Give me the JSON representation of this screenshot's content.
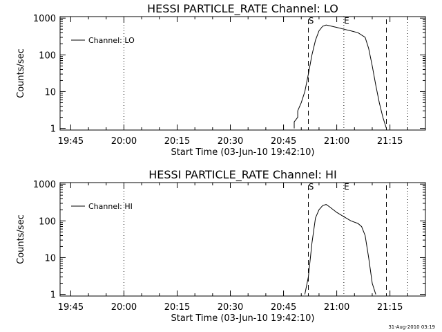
{
  "footer": {
    "timestamp": "31-Aug-2010 03:19"
  },
  "chart_data": [
    {
      "type": "line",
      "title": "HESSI PARTICLE_RATE Channel: LO",
      "xlabel": "Start Time (03-Jun-10 19:42:10)",
      "ylabel": "Counts/sec",
      "yscale": "log",
      "ylim": [
        0.9,
        1100
      ],
      "xlim": [
        "19:42",
        "21:25"
      ],
      "x_ticks": [
        "19:45",
        "20:00",
        "20:15",
        "20:30",
        "20:45",
        "21:00",
        "21:15"
      ],
      "y_ticks": [
        "1",
        "10",
        "100",
        "1000"
      ],
      "legend": {
        "position": "top-left",
        "entries": [
          "Channel: LO"
        ]
      },
      "markers": [
        {
          "label": "S",
          "time": "20:52",
          "style": "dashed"
        },
        {
          "label": "E",
          "time": "21:02",
          "style": "dotted"
        }
      ],
      "vlines": [
        {
          "time": "20:00",
          "style": "dotted"
        },
        {
          "time": "20:52",
          "style": "dashed"
        },
        {
          "time": "21:02",
          "style": "dotted"
        },
        {
          "time": "21:14",
          "style": "dashed"
        },
        {
          "time": "21:20",
          "style": "dotted"
        }
      ],
      "series": [
        {
          "name": "Channel: LO",
          "x": [
            "20:48",
            "20:48",
            "20:49",
            "20:49",
            "20:50",
            "20:51",
            "20:52",
            "20:53",
            "20:54",
            "20:55",
            "20:56",
            "20:57",
            "20:58",
            "21:00",
            "21:02",
            "21:04",
            "21:06",
            "21:08",
            "21:09",
            "21:10",
            "21:11",
            "21:12",
            "21:13",
            "21:14"
          ],
          "y": [
            1,
            1.5,
            2,
            3,
            5,
            10,
            30,
            100,
            250,
            450,
            600,
            650,
            620,
            560,
            500,
            450,
            400,
            300,
            150,
            50,
            15,
            5,
            2,
            1
          ]
        }
      ]
    },
    {
      "type": "line",
      "title": "HESSI PARTICLE_RATE Channel: HI",
      "xlabel": "Start Time (03-Jun-10 19:42:10)",
      "ylabel": "Counts/sec",
      "yscale": "log",
      "ylim": [
        0.9,
        1100
      ],
      "xlim": [
        "19:42",
        "21:25"
      ],
      "x_ticks": [
        "19:45",
        "20:00",
        "20:15",
        "20:30",
        "20:45",
        "21:00",
        "21:15"
      ],
      "y_ticks": [
        "1",
        "10",
        "100",
        "1000"
      ],
      "legend": {
        "position": "top-left",
        "entries": [
          "Channel: HI"
        ]
      },
      "markers": [
        {
          "label": "S",
          "time": "20:52",
          "style": "dashed"
        },
        {
          "label": "E",
          "time": "21:02",
          "style": "dotted"
        }
      ],
      "vlines": [
        {
          "time": "20:00",
          "style": "dotted"
        },
        {
          "time": "20:52",
          "style": "dashed"
        },
        {
          "time": "21:02",
          "style": "dotted"
        },
        {
          "time": "21:14",
          "style": "dashed"
        },
        {
          "time": "21:20",
          "style": "dotted"
        }
      ],
      "series": [
        {
          "name": "Channel: HI",
          "x": [
            "20:51",
            "20:52",
            "20:53",
            "20:54",
            "20:55",
            "20:56",
            "20:57",
            "20:58",
            "21:00",
            "21:02",
            "21:04",
            "21:06",
            "21:07",
            "21:08",
            "21:09",
            "21:10",
            "21:11"
          ],
          "y": [
            1,
            3,
            25,
            120,
            200,
            260,
            280,
            240,
            170,
            130,
            100,
            85,
            70,
            40,
            10,
            2,
            1
          ]
        }
      ]
    }
  ]
}
